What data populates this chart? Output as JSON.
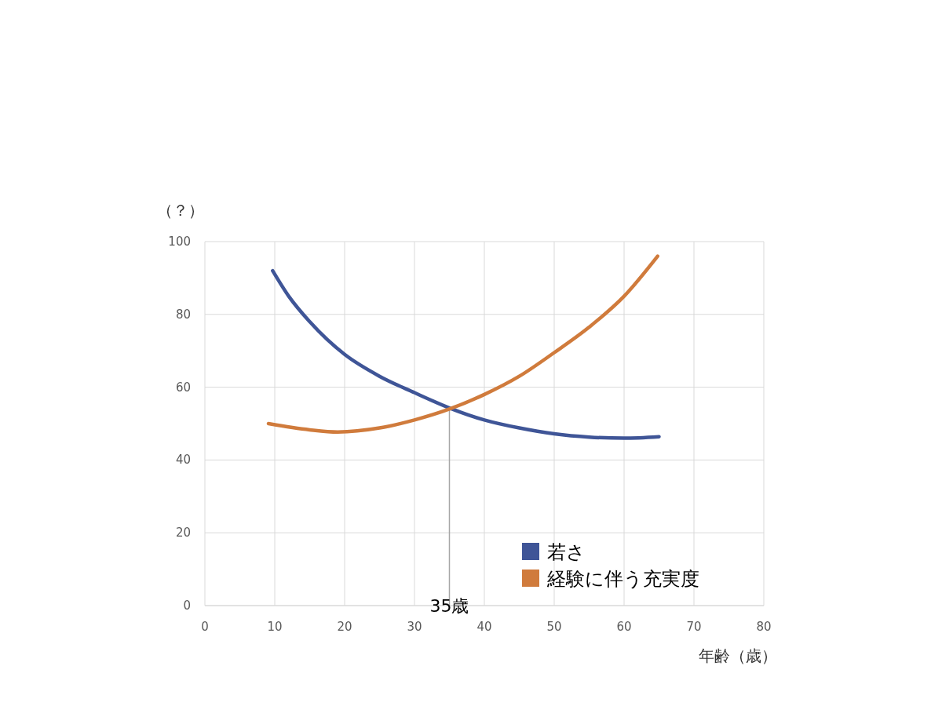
{
  "chart_data": {
    "type": "line",
    "xlabel": "年齢（歳）",
    "ylabel": "（？）",
    "xlim": [
      0,
      80
    ],
    "ylim": [
      0,
      100
    ],
    "xticks": [
      0,
      10,
      20,
      30,
      40,
      50,
      60,
      70,
      80
    ],
    "yticks": [
      0,
      20,
      40,
      60,
      80,
      100
    ],
    "grid": true,
    "legend": "bottom right",
    "marker": "none",
    "line_style": "solid",
    "series": [
      {
        "name": "若さ",
        "color": "#3f5597",
        "x": [
          9.7,
          12,
          15,
          20,
          25,
          30,
          35,
          40,
          45,
          50,
          55,
          60,
          65
        ],
        "values": [
          92,
          85,
          78,
          69,
          63,
          58.5,
          54.3,
          51,
          48.8,
          47.2,
          46.3,
          46,
          46.4
        ]
      },
      {
        "name": "経験に伴う充実度",
        "color": "#d07b3c",
        "x": [
          9.1,
          15,
          19,
          25,
          30,
          35,
          40,
          45,
          50,
          55,
          60,
          64.8
        ],
        "values": [
          50,
          48.3,
          47.7,
          48.8,
          51,
          54,
          58,
          63,
          69.5,
          76.5,
          85,
          96
        ]
      }
    ],
    "ref_lines": [
      {
        "axis": "x",
        "value": 35,
        "label": "35歳",
        "color": "#a6a6a6"
      }
    ]
  }
}
